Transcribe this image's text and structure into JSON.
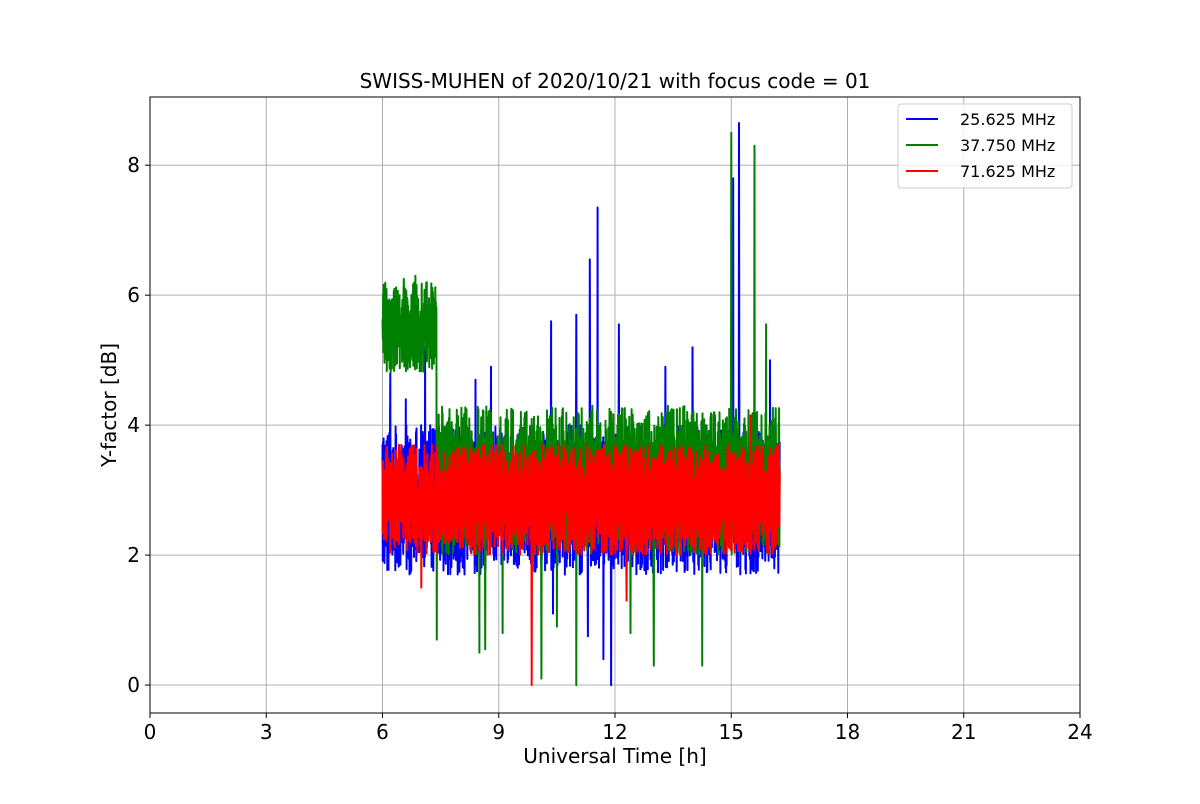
{
  "chart_data": {
    "type": "line",
    "title": "SWISS-MUHEN of 2020/10/21 with focus code = 01",
    "xlabel": "Universal Time [h]",
    "ylabel": "Y-factor [dB]",
    "xlim": [
      0,
      24
    ],
    "ylim": [
      -0.43,
      9.05
    ],
    "xticks": [
      0,
      3,
      6,
      9,
      12,
      15,
      18,
      21,
      24
    ],
    "xtick_labels": [
      "0",
      "3",
      "6",
      "9",
      "12",
      "15",
      "18",
      "21",
      "24"
    ],
    "yticks": [
      0,
      2,
      4,
      6,
      8
    ],
    "ytick_labels": [
      "0",
      "2",
      "4",
      "6",
      "8"
    ],
    "grid": true,
    "legend_position": "top-right",
    "series": [
      {
        "name": "25.625 MHz",
        "color": "#0000ff",
        "x_range": [
          6.0,
          16.25
        ],
        "baseline": 2.75,
        "band_low": 1.7,
        "band_high": 4.0,
        "spikes": [
          {
            "x": 6.2,
            "y": 4.8
          },
          {
            "x": 6.6,
            "y": 4.4
          },
          {
            "x": 7.1,
            "y": 5.2
          },
          {
            "x": 8.4,
            "y": 4.7
          },
          {
            "x": 8.8,
            "y": 4.9
          },
          {
            "x": 10.35,
            "y": 5.6
          },
          {
            "x": 11.0,
            "y": 5.7
          },
          {
            "x": 11.35,
            "y": 6.55
          },
          {
            "x": 11.55,
            "y": 7.35
          },
          {
            "x": 12.1,
            "y": 5.55
          },
          {
            "x": 13.3,
            "y": 4.9
          },
          {
            "x": 14.0,
            "y": 5.2
          },
          {
            "x": 15.2,
            "y": 8.65
          },
          {
            "x": 15.05,
            "y": 7.8
          },
          {
            "x": 16.0,
            "y": 5.0
          },
          {
            "x": 11.3,
            "y": 0.75
          },
          {
            "x": 11.7,
            "y": 0.4
          },
          {
            "x": 11.9,
            "y": 0.0
          },
          {
            "x": 10.4,
            "y": 1.1
          }
        ]
      },
      {
        "name": "37.750 MHz",
        "color": "#008000",
        "x_range": [
          6.0,
          16.25
        ],
        "baseline": 3.2,
        "band_low": 2.0,
        "band_high": 4.3,
        "early_block": {
          "x_start": 6.0,
          "x_end": 7.4,
          "level": 5.5,
          "low": 4.8,
          "high": 6.2
        },
        "spikes": [
          {
            "x": 6.55,
            "y": 6.25
          },
          {
            "x": 6.85,
            "y": 6.3
          },
          {
            "x": 7.3,
            "y": 6.05
          },
          {
            "x": 15.0,
            "y": 8.5
          },
          {
            "x": 15.6,
            "y": 8.3
          },
          {
            "x": 15.9,
            "y": 5.55
          },
          {
            "x": 7.4,
            "y": 0.7
          },
          {
            "x": 8.5,
            "y": 0.5
          },
          {
            "x": 8.65,
            "y": 0.55
          },
          {
            "x": 9.1,
            "y": 0.8
          },
          {
            "x": 10.1,
            "y": 0.1
          },
          {
            "x": 10.5,
            "y": 0.9
          },
          {
            "x": 11.0,
            "y": 0.0
          },
          {
            "x": 12.4,
            "y": 0.8
          },
          {
            "x": 13.0,
            "y": 0.3
          },
          {
            "x": 14.25,
            "y": 0.3
          }
        ]
      },
      {
        "name": "71.625 MHz",
        "color": "#ff0000",
        "x_range": [
          6.0,
          16.25
        ],
        "baseline": 2.8,
        "band_low": 2.0,
        "band_high": 3.7,
        "spikes": [
          {
            "x": 15.5,
            "y": 4.15
          },
          {
            "x": 9.85,
            "y": 0.0
          },
          {
            "x": 12.3,
            "y": 1.3
          },
          {
            "x": 7.0,
            "y": 1.5
          }
        ]
      }
    ]
  }
}
